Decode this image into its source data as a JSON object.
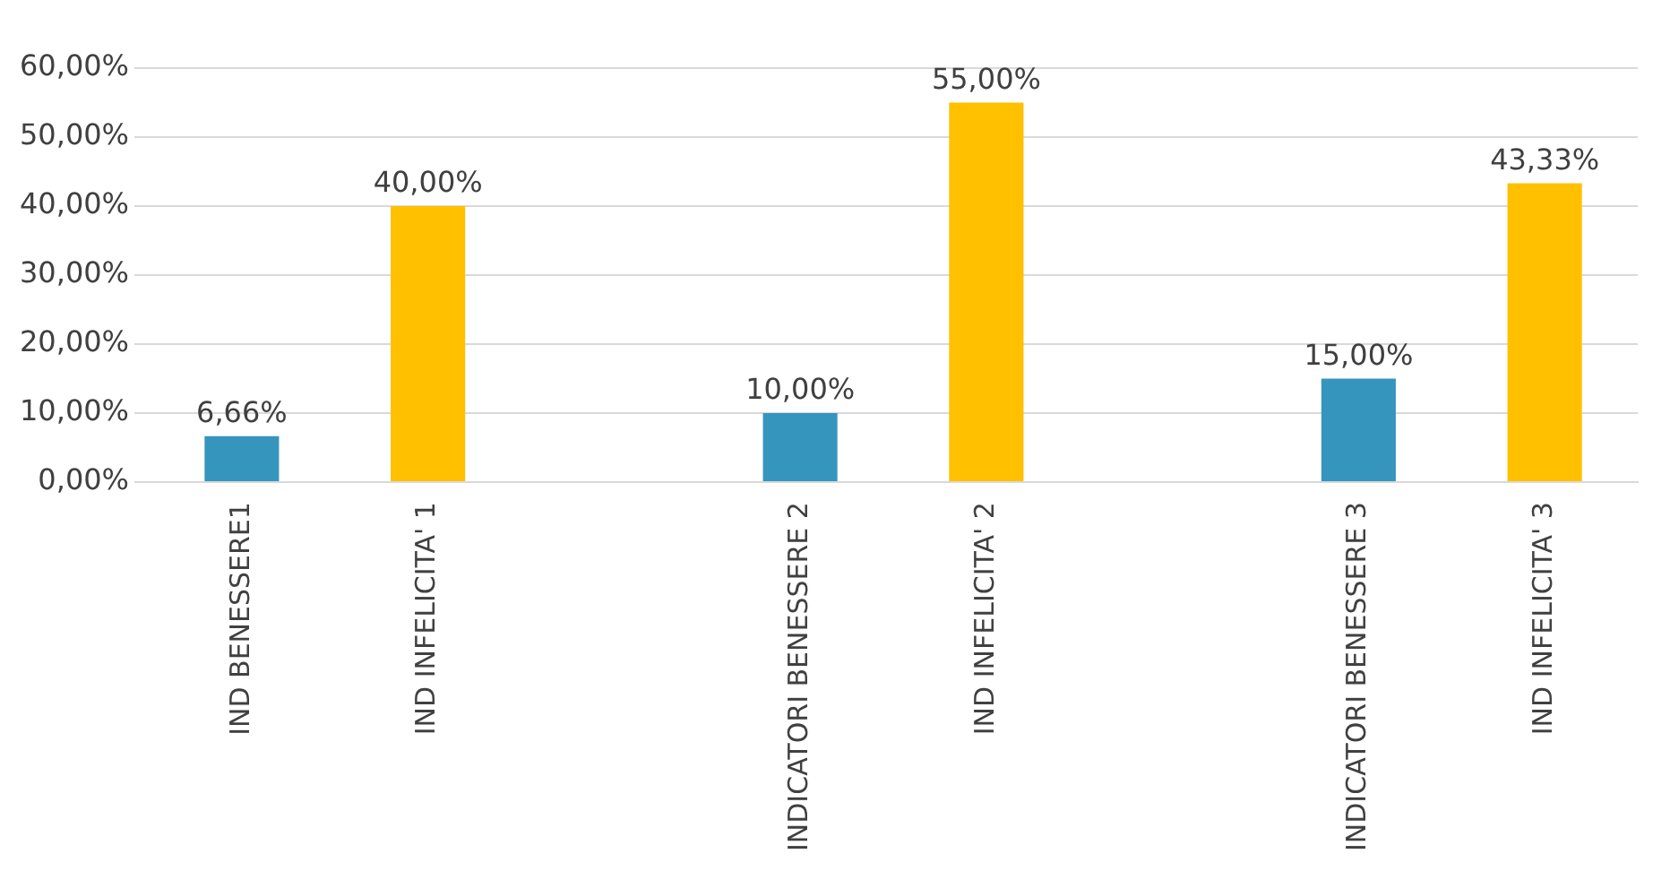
{
  "chart_data": {
    "type": "bar",
    "categories": [
      "IND BENESSERE1",
      "IND INFELICITA' 1",
      null,
      "INDICATORI BENESSERE 2",
      "IND INFELICITA' 2",
      null,
      "INDICATORI BENESSERE 3",
      "IND INFELICITA' 3"
    ],
    "values": [
      6.66,
      40,
      null,
      10,
      55,
      null,
      15,
      43.33
    ],
    "colors": [
      "#3595bd",
      "#ffc000",
      "#3595bd",
      "#3595bd",
      "#ffc000",
      "#3595bd",
      "#3595bd",
      "#ffc000"
    ],
    "value_labels": [
      "6,66%",
      "40,00%",
      null,
      "10,00%",
      "55,00%",
      null,
      "15,00%",
      "43,33%"
    ],
    "ylim": [
      0,
      60
    ],
    "yticks": [
      {
        "value": 0,
        "label": "0,00%"
      },
      {
        "value": 10,
        "label": "10,00%"
      },
      {
        "value": 20,
        "label": "20,00%"
      },
      {
        "value": 30,
        "label": "30,00%"
      },
      {
        "value": 40,
        "label": "40,00%"
      },
      {
        "value": 50,
        "label": "50,00%"
      },
      {
        "value": 60,
        "label": "60,00%"
      }
    ],
    "grid": "y",
    "legend": false
  }
}
